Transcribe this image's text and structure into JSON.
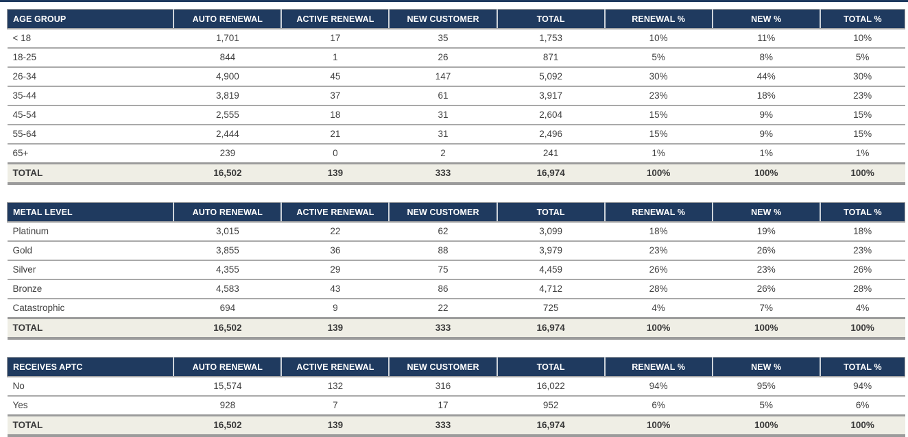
{
  "columns": [
    "AUTO RENEWAL",
    "ACTIVE RENEWAL",
    "NEW CUSTOMER",
    "TOTAL",
    "RENEWAL %",
    "NEW %",
    "TOTAL %"
  ],
  "tables": [
    {
      "label": "AGE GROUP",
      "rows": [
        [
          "< 18",
          "1,701",
          "17",
          "35",
          "1,753",
          "10%",
          "11%",
          "10%"
        ],
        [
          "18-25",
          "844",
          "1",
          "26",
          "871",
          "5%",
          "8%",
          "5%"
        ],
        [
          "26-34",
          "4,900",
          "45",
          "147",
          "5,092",
          "30%",
          "44%",
          "30%"
        ],
        [
          "35-44",
          "3,819",
          "37",
          "61",
          "3,917",
          "23%",
          "18%",
          "23%"
        ],
        [
          "45-54",
          "2,555",
          "18",
          "31",
          "2,604",
          "15%",
          "9%",
          "15%"
        ],
        [
          "55-64",
          "2,444",
          "21",
          "31",
          "2,496",
          "15%",
          "9%",
          "15%"
        ],
        [
          "65+",
          "239",
          "0",
          "2",
          "241",
          "1%",
          "1%",
          "1%"
        ]
      ],
      "total": [
        "TOTAL",
        "16,502",
        "139",
        "333",
        "16,974",
        "100%",
        "100%",
        "100%"
      ]
    },
    {
      "label": "METAL LEVEL",
      "rows": [
        [
          "Platinum",
          "3,015",
          "22",
          "62",
          "3,099",
          "18%",
          "19%",
          "18%"
        ],
        [
          "Gold",
          "3,855",
          "36",
          "88",
          "3,979",
          "23%",
          "26%",
          "23%"
        ],
        [
          "Silver",
          "4,355",
          "29",
          "75",
          "4,459",
          "26%",
          "23%",
          "26%"
        ],
        [
          "Bronze",
          "4,583",
          "43",
          "86",
          "4,712",
          "28%",
          "26%",
          "28%"
        ],
        [
          "Catastrophic",
          "694",
          "9",
          "22",
          "725",
          "4%",
          "7%",
          "4%"
        ]
      ],
      "total": [
        "TOTAL",
        "16,502",
        "139",
        "333",
        "16,974",
        "100%",
        "100%",
        "100%"
      ]
    },
    {
      "label": "RECEIVES APTC",
      "rows": [
        [
          "No",
          "15,574",
          "132",
          "316",
          "16,022",
          "94%",
          "95%",
          "94%"
        ],
        [
          "Yes",
          "928",
          "7",
          "17",
          "952",
          "6%",
          "5%",
          "6%"
        ]
      ],
      "total": [
        "TOTAL",
        "16,502",
        "139",
        "333",
        "16,974",
        "100%",
        "100%",
        "100%"
      ]
    }
  ],
  "colors": {
    "header_bg": "#1f3a5f",
    "total_row_bg": "#efeee5",
    "border_gray": "#a6a6a6",
    "text": "#3f3f3f"
  }
}
